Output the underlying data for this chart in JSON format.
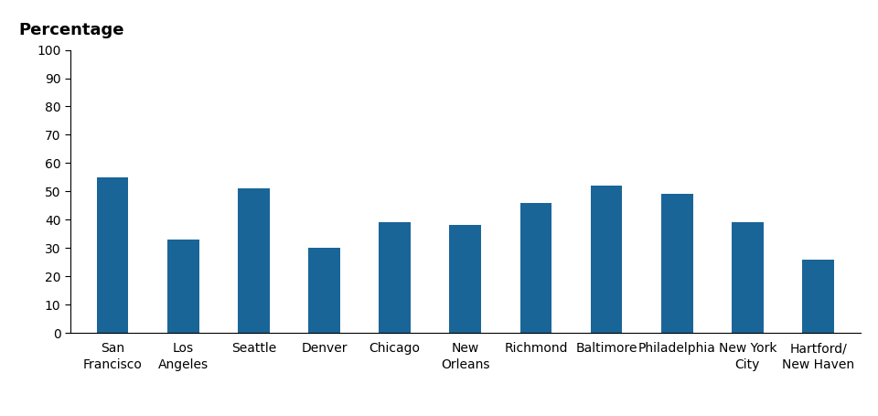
{
  "categories": [
    "San\nFrancisco",
    "Los\nAngeles",
    "Seattle",
    "Denver",
    "Chicago",
    "New\nOrleans",
    "Richmond",
    "Baltimore",
    "Philadelphia",
    "New York\nCity",
    "Hartford/\nNew Haven"
  ],
  "values": [
    55,
    33,
    51,
    30,
    39,
    38,
    46,
    52,
    49,
    39,
    26
  ],
  "bar_color": "#1a6598",
  "ylabel": "Percentage",
  "ylim": [
    0,
    100
  ],
  "yticks": [
    0,
    10,
    20,
    30,
    40,
    50,
    60,
    70,
    80,
    90,
    100
  ],
  "background_color": "#ffffff",
  "ylabel_fontsize": 13,
  "ylabel_fontweight": "bold",
  "tick_fontsize": 10,
  "bar_width": 0.45
}
